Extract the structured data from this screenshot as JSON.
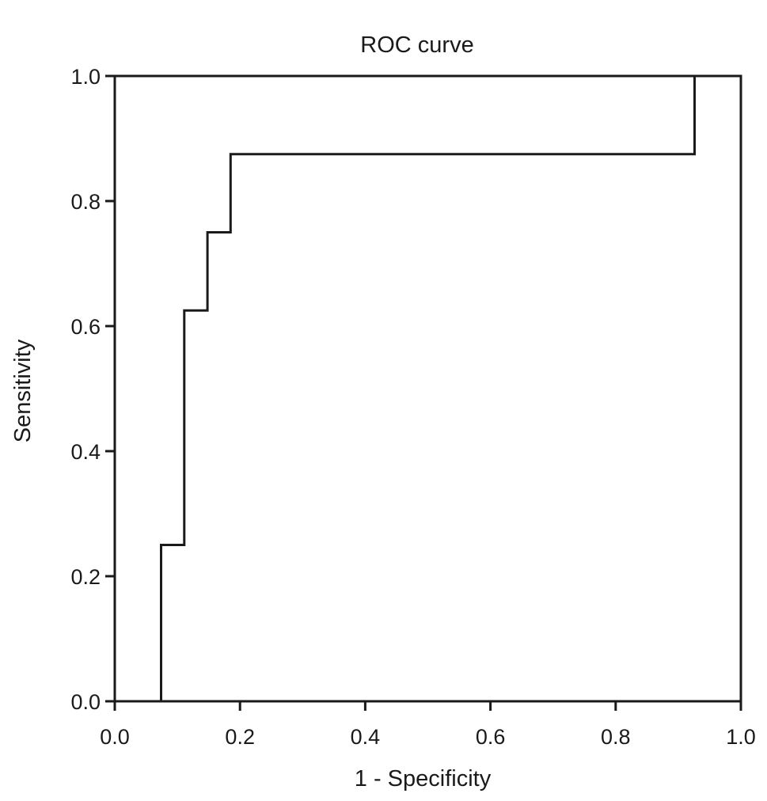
{
  "chart_data": {
    "type": "line",
    "title": "ROC curve",
    "xlabel": "1 - Specificity",
    "ylabel": "Sensitivity",
    "xlim": [
      0.0,
      1.0
    ],
    "ylim": [
      0.0,
      1.0
    ],
    "x_ticks": [
      "0.0",
      "0.2",
      "0.4",
      "0.6",
      "0.8",
      "1.0"
    ],
    "y_ticks": [
      "0.0",
      "0.2",
      "0.4",
      "0.6",
      "0.8",
      "1.0"
    ],
    "grid": false,
    "legend": "none",
    "line_color": "#1a1a1a",
    "step": true,
    "points": [
      {
        "x": 0.0,
        "y": 0.0
      },
      {
        "x": 0.074,
        "y": 0.0
      },
      {
        "x": 0.074,
        "y": 0.25
      },
      {
        "x": 0.111,
        "y": 0.25
      },
      {
        "x": 0.111,
        "y": 0.625
      },
      {
        "x": 0.148,
        "y": 0.625
      },
      {
        "x": 0.148,
        "y": 0.75
      },
      {
        "x": 0.185,
        "y": 0.75
      },
      {
        "x": 0.185,
        "y": 0.875
      },
      {
        "x": 0.926,
        "y": 0.875
      },
      {
        "x": 0.926,
        "y": 1.0
      },
      {
        "x": 1.0,
        "y": 1.0
      }
    ]
  }
}
